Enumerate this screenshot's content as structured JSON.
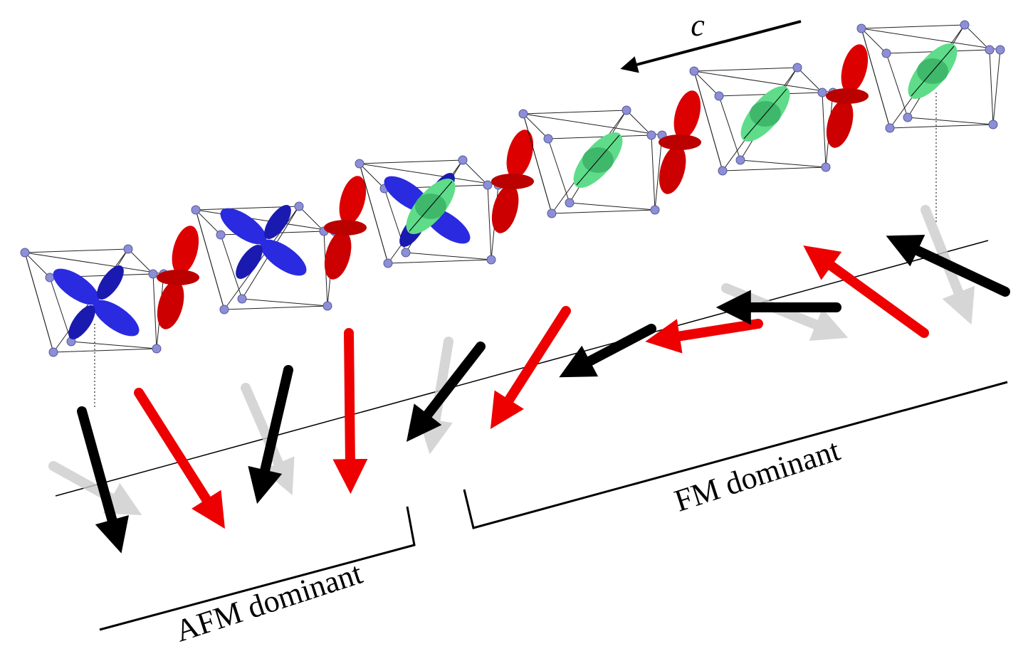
{
  "axis_label": "c",
  "labels": {
    "fm": "FM dominant",
    "afm": "AFM dominant"
  }
}
